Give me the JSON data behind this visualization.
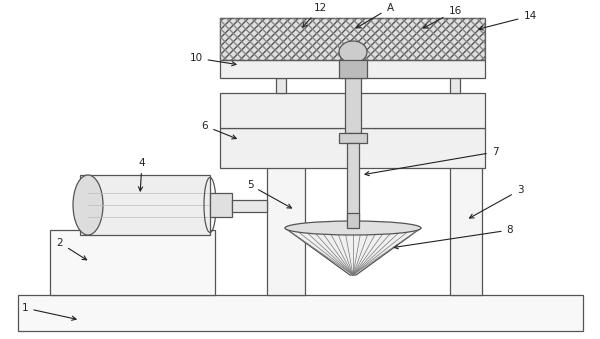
{
  "bg_color": "#ffffff",
  "line_color": "#555555",
  "label_color": "#222222",
  "fig_width": 6.0,
  "fig_height": 3.39,
  "dpi": 100
}
